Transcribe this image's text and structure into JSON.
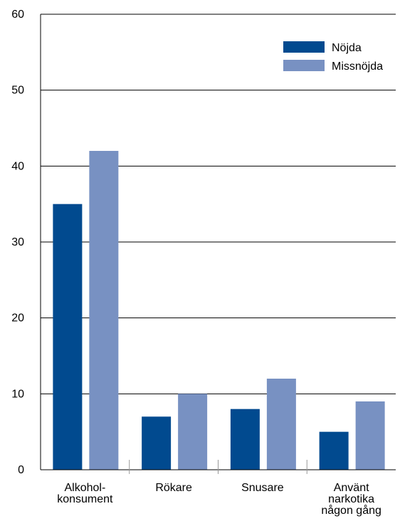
{
  "chart_data": {
    "type": "bar",
    "title": "",
    "xlabel": "",
    "ylabel": "",
    "ylim": [
      0,
      60
    ],
    "yticks": [
      "0",
      "10",
      "20",
      "30",
      "40",
      "50",
      "60"
    ],
    "grid": true,
    "legend_position": "top-right",
    "categories": [
      [
        "Alkohol-",
        "konsument"
      ],
      [
        "Rökare"
      ],
      [
        "Snusare"
      ],
      [
        "Använt",
        "narkotika",
        "någon gång"
      ]
    ],
    "series": [
      {
        "name": "Nöjda",
        "color": "#014a8f",
        "values": [
          35,
          7,
          8,
          5
        ]
      },
      {
        "name": "Missnöjda",
        "color": "#7891c2",
        "values": [
          42,
          10,
          12,
          9
        ]
      }
    ]
  }
}
